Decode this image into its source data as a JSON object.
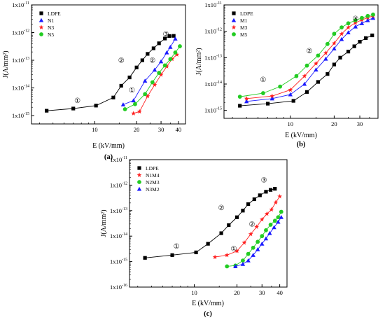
{
  "chart_data": [
    {
      "panel": "a",
      "label": "(a)",
      "type": "scatter",
      "xlabel": "E (kV/mm)",
      "ylabel": "J(A/mm²)",
      "xscale": "log",
      "yscale": "log",
      "xlim": [
        3.5,
        45
      ],
      "ylim": [
        5e-16,
        1e-11
      ],
      "xticks": [
        10,
        20,
        30,
        40
      ],
      "yticks": [
        1e-15,
        1e-14,
        1e-13,
        1e-12,
        1e-11
      ],
      "ytick_labels": [
        "1x10",
        "1x10",
        "1x10",
        "1x10",
        "1x10"
      ],
      "ytick_exponents": [
        "-15",
        "-14",
        "-13",
        "-12",
        "-11"
      ],
      "legend_position": "top-left",
      "series": [
        {
          "name": "LDPE",
          "color": "#000000",
          "marker": "square",
          "x": [
            4.5,
            7,
            10.2,
            13.6,
            15.5,
            17.8,
            20,
            22,
            24,
            26.5,
            29,
            32,
            34.5,
            37
          ],
          "y": [
            1.5e-15,
            1.8e-15,
            2.3e-15,
            4.5e-15,
            1.2e-14,
            2.4e-14,
            5.5e-14,
            1e-13,
            1.7e-13,
            2.7e-13,
            4.1e-13,
            6.1e-13,
            7.5e-13,
            7.6e-13
          ]
        },
        {
          "name": "N1",
          "color": "#1a1aff",
          "marker": "triangle",
          "x": [
            16,
            19,
            23,
            27,
            30,
            33,
            35,
            38
          ],
          "y": [
            2.5e-15,
            3.5e-15,
            1.8e-14,
            4.5e-14,
            9e-14,
            1.9e-13,
            3e-13,
            6e-13
          ]
        },
        {
          "name": "N3",
          "color": "#ff2020",
          "marker": "star",
          "x": [
            19,
            21,
            24,
            27,
            30,
            33,
            36,
            39
          ],
          "y": [
            1.2e-15,
            1.4e-15,
            5e-15,
            1.3e-14,
            3e-14,
            6e-14,
            1.1e-13,
            1.6e-13
          ]
        },
        {
          "name": "N5",
          "color": "#22cc22",
          "marker": "circle",
          "x": [
            16.5,
            19.5,
            23,
            26,
            29,
            32,
            35,
            38,
            41
          ],
          "y": [
            1.7e-15,
            2.6e-15,
            6e-15,
            1.6e-14,
            3.5e-14,
            6.5e-14,
            1.1e-13,
            1.9e-13,
            3.2e-13
          ]
        }
      ],
      "annotations": [
        {
          "text": "①",
          "x": 7.5,
          "y": 3.5e-15
        },
        {
          "text": "②",
          "x": 15.5,
          "y": 1e-13
        },
        {
          "text": "②",
          "x": 26,
          "y": 1e-13
        },
        {
          "text": "①",
          "x": 18.5,
          "y": 8.5e-15
        },
        {
          "text": "③",
          "x": 32.5,
          "y": 9e-13
        }
      ]
    },
    {
      "panel": "b",
      "label": "(b)",
      "type": "scatter",
      "xlabel": "E (kV/mm)",
      "ylabel": "J(A/mm²)",
      "xscale": "log",
      "yscale": "log",
      "xlim": [
        3.5,
        40
      ],
      "ylim": [
        5e-16,
        1e-11
      ],
      "xticks": [
        10,
        20,
        30
      ],
      "yticks": [
        1e-15,
        1e-14,
        1e-13,
        1e-12,
        1e-11
      ],
      "ytick_labels": [
        "1x10",
        "1x10",
        "1x10",
        "1x10",
        "1x10"
      ],
      "ytick_exponents": [
        "-15",
        "-14",
        "-13",
        "-12",
        "-11"
      ],
      "legend_position": "top-left",
      "series": [
        {
          "name": "LDPE",
          "color": "#000000",
          "marker": "square",
          "x": [
            4.5,
            7,
            10.5,
            13,
            15.5,
            18,
            20,
            22,
            25,
            27.5,
            30,
            33,
            36.5
          ],
          "y": [
            1.5e-15,
            1.8e-15,
            2.3e-15,
            5e-15,
            1.2e-14,
            2.4e-14,
            5.5e-14,
            1e-13,
            1.7e-13,
            2.7e-13,
            4e-13,
            5.5e-13,
            7e-13
          ]
        },
        {
          "name": "M1",
          "color": "#1a1aff",
          "marker": "triangle",
          "x": [
            5,
            7.5,
            10,
            12.5,
            15,
            17.5,
            20,
            22.5,
            25,
            28,
            31,
            34,
            37
          ],
          "y": [
            2.2e-15,
            2.8e-15,
            4e-15,
            1e-14,
            3.5e-14,
            9e-14,
            2.2e-13,
            5e-13,
            9e-13,
            1.5e-12,
            2e-12,
            2.6e-12,
            3.2e-12
          ]
        },
        {
          "name": "M3",
          "color": "#ff2020",
          "marker": "star",
          "x": [
            5,
            7.5,
            10,
            12.5,
            15,
            17.5,
            20,
            22.5,
            25,
            28,
            31,
            34,
            37
          ],
          "y": [
            2.8e-15,
            3.5e-15,
            6e-15,
            2e-14,
            6e-14,
            1.5e-13,
            3.5e-13,
            8e-13,
            1.4e-12,
            2.1e-12,
            2.7e-12,
            3.3e-12,
            3.8e-12
          ]
        },
        {
          "name": "M5",
          "color": "#22cc22",
          "marker": "circle",
          "x": [
            4.5,
            6.5,
            8.5,
            11,
            13,
            15.5,
            18,
            20,
            22.5,
            25,
            28,
            31,
            34,
            37
          ],
          "y": [
            3.3e-15,
            4.5e-15,
            8e-15,
            2e-14,
            5e-14,
            1.2e-13,
            3.3e-13,
            8e-13,
            1.4e-12,
            2e-12,
            2.6e-12,
            3.2e-12,
            3.8e-12,
            4.3e-12
          ]
        }
      ],
      "annotations": [
        {
          "text": "①",
          "x": 6.5,
          "y": 1.5e-14
        },
        {
          "text": "②",
          "x": 13.5,
          "y": 1.8e-13
        },
        {
          "text": "③",
          "x": 28,
          "y": 3e-12
        }
      ]
    },
    {
      "panel": "c",
      "label": "(c)",
      "type": "scatter",
      "xlabel": "E (kV/mm)",
      "ylabel": "J(A/mm²)",
      "xscale": "log",
      "yscale": "log",
      "xlim": [
        3.5,
        45
      ],
      "ylim": [
        1e-16,
        1e-11
      ],
      "xticks": [
        10,
        20,
        30,
        40
      ],
      "yticks": [
        1e-16,
        1e-15,
        1e-14,
        1e-13,
        1e-12,
        1e-11
      ],
      "ytick_labels": [
        "1x10",
        "1x10",
        "1x10",
        "1x10",
        "1x10",
        "1x10"
      ],
      "ytick_exponents": [
        "-16",
        "-15",
        "-14",
        "-13",
        "-12",
        "-11"
      ],
      "legend_position": "top-left",
      "series": [
        {
          "name": "LDPE",
          "color": "#000000",
          "marker": "square",
          "x": [
            4.5,
            7,
            10.3,
            12.5,
            15.5,
            17.5,
            20,
            22,
            24,
            26.5,
            29,
            32,
            34.5,
            37
          ],
          "y": [
            1.4e-15,
            1.8e-15,
            2.3e-15,
            5e-15,
            1.3e-14,
            2.7e-14,
            5.5e-14,
            1e-13,
            1.8e-13,
            2.8e-13,
            4e-13,
            5.5e-13,
            6.5e-13,
            7.2e-13
          ]
        },
        {
          "name": "N1M4",
          "color": "#ff2020",
          "marker": "star",
          "x": [
            14,
            17,
            20,
            22.5,
            25,
            27.5,
            30,
            32.5,
            35,
            37.5,
            40
          ],
          "y": [
            1.5e-15,
            1.8e-15,
            2.6e-15,
            5.5e-15,
            1.2e-14,
            2.3e-14,
            4.5e-14,
            7.5e-14,
            1.1e-13,
            2.1e-13,
            3.6e-13
          ]
        },
        {
          "name": "N2M3",
          "color": "#22cc22",
          "marker": "circle",
          "x": [
            17,
            19.5,
            22,
            24,
            26,
            28,
            30,
            32,
            34.5,
            37,
            39,
            41
          ],
          "y": [
            6.5e-16,
            7e-16,
            1.1e-15,
            2e-15,
            3.5e-15,
            6e-15,
            1e-14,
            1.7e-14,
            2.8e-14,
            4e-14,
            5.5e-14,
            9e-14
          ]
        },
        {
          "name": "N3M2",
          "color": "#1a1aff",
          "marker": "triangle",
          "x": [
            19.5,
            22,
            24,
            26,
            28,
            30,
            32,
            34,
            36.5,
            39,
            41
          ],
          "y": [
            6.5e-16,
            8e-16,
            1.1e-15,
            1.8e-15,
            3e-15,
            5e-15,
            8e-15,
            1.3e-14,
            2.2e-14,
            3.6e-14,
            5.5e-14
          ]
        }
      ],
      "annotations": [
        {
          "text": "①",
          "x": 7.5,
          "y": 4e-15
        },
        {
          "text": "②",
          "x": 15.5,
          "y": 1.3e-13
        },
        {
          "text": "②",
          "x": 25.5,
          "y": 3e-14
        },
        {
          "text": "①",
          "x": 19,
          "y": 3.2e-15
        },
        {
          "text": "③",
          "x": 31,
          "y": 1.6e-12
        }
      ]
    }
  ]
}
